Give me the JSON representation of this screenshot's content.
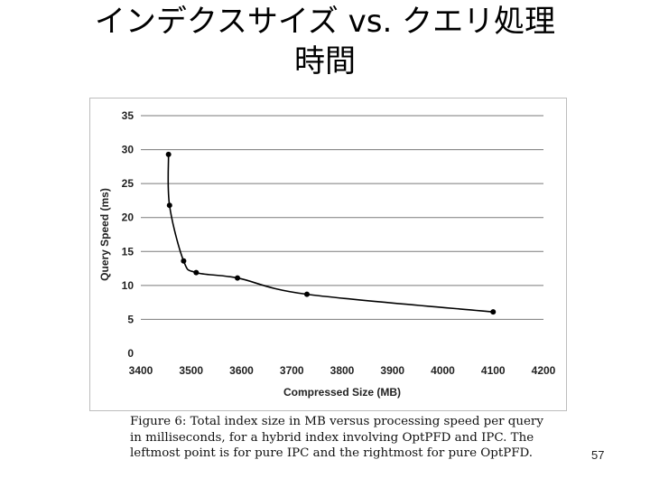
{
  "slide": {
    "title_line1": "インデクスサイズ vs. クエリ処理",
    "title_line2": "時間",
    "caption": "Figure 6:  Total index size in MB versus processing speed per query in milliseconds, for a hybrid index involving OptPFD and IPC. The leftmost point is for pure IPC and the rightmost for pure OptPFD.",
    "page_number": "57"
  },
  "chart_data": {
    "type": "line",
    "xlabel": "Compressed Size (MB)",
    "ylabel": "Query Speed (ms)",
    "xlim": [
      3400,
      4200
    ],
    "ylim": [
      0,
      35
    ],
    "x_ticks": [
      "3400",
      "3500",
      "3600",
      "3700",
      "3800",
      "3900",
      "4000",
      "4100",
      "4200"
    ],
    "y_ticks": [
      "0",
      "5",
      "10",
      "15",
      "20",
      "25",
      "30",
      "35"
    ],
    "grid": "horizontal",
    "series": [
      {
        "x": [
          3455,
          3457,
          3485,
          3510,
          3592,
          3730,
          4100
        ],
        "y": [
          29.3,
          21.8,
          13.6,
          11.9,
          11.1,
          8.7,
          6.1
        ]
      }
    ],
    "line_color": "#000000",
    "grid_color": "#7a7a7a"
  }
}
